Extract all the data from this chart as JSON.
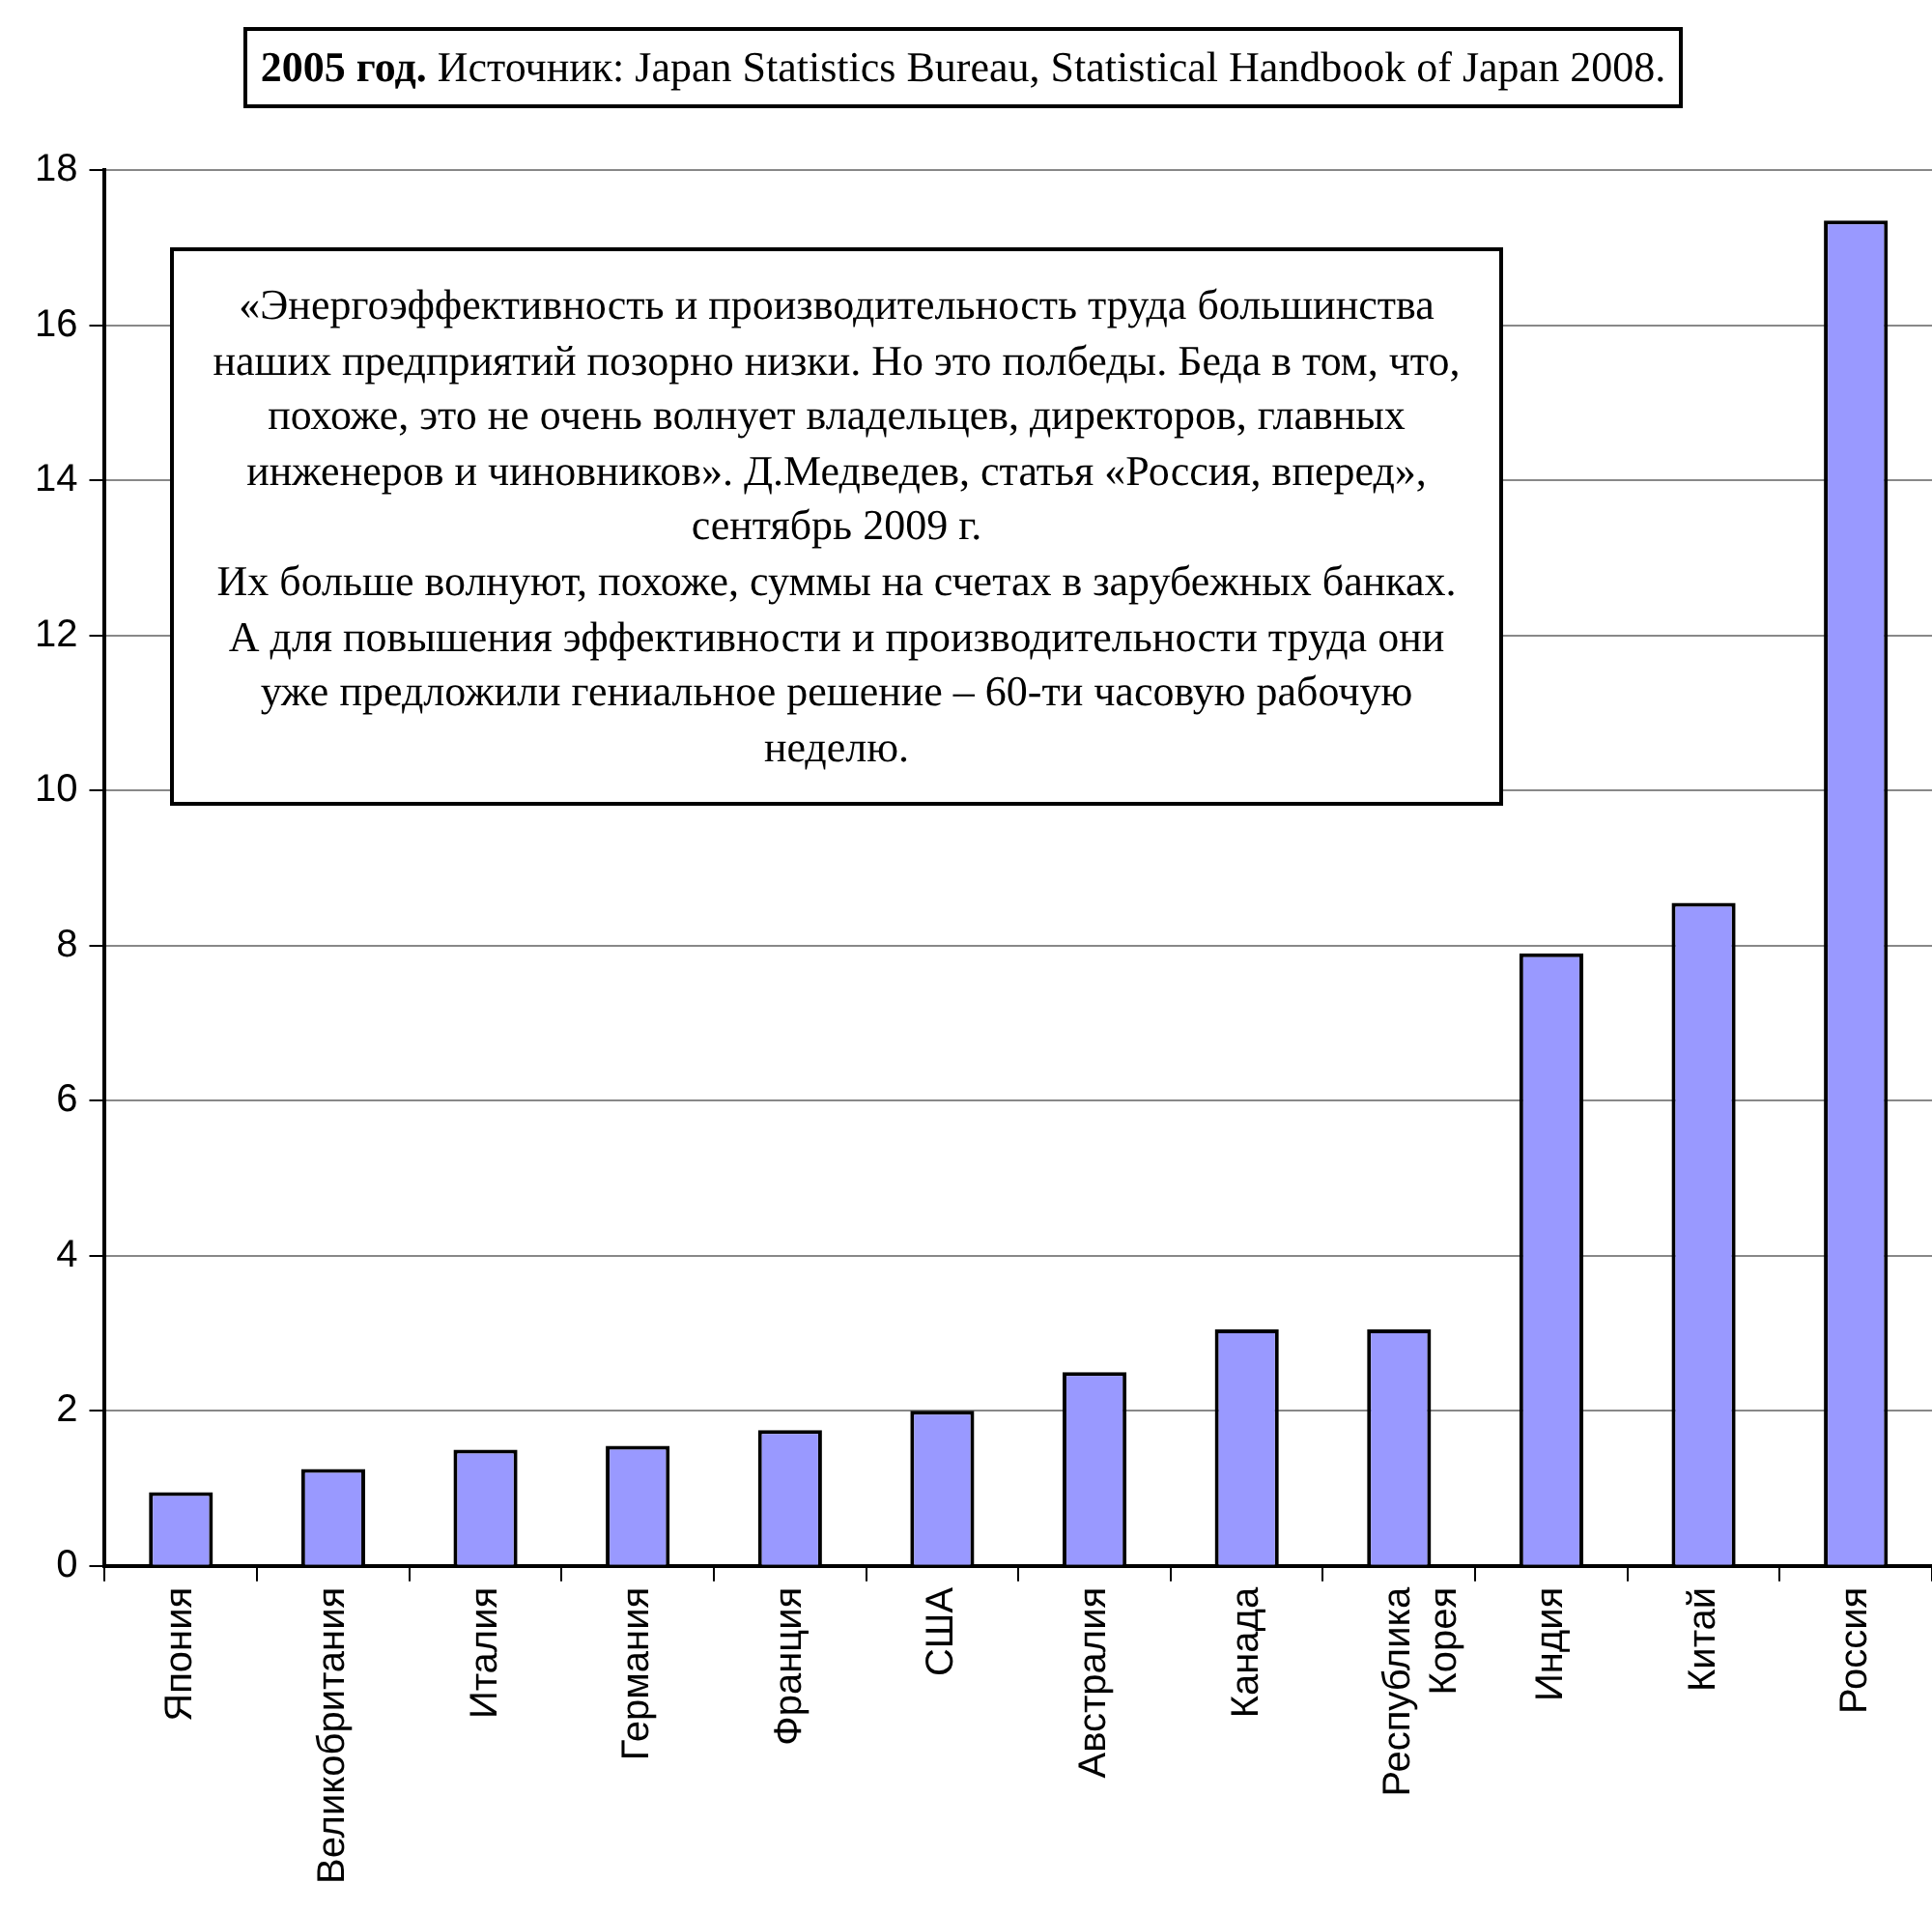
{
  "chart_data": {
    "type": "bar",
    "title": "2005 год.",
    "subtitle": "Источник: Japan Statistics Bureau, Statistical Handbook of Japan 2008.",
    "categories": [
      "Япония",
      "Великобритания",
      "Италия",
      "Германия",
      "Франция",
      "США",
      "Австралия",
      "Канада",
      "Республика Корея",
      "Индия",
      "Китай",
      "Россия"
    ],
    "values": [
      0.95,
      1.25,
      1.5,
      1.55,
      1.75,
      2.0,
      2.5,
      3.05,
      3.05,
      7.9,
      8.55,
      17.35
    ],
    "color": "#9999ff",
    "ylim": [
      0,
      18
    ],
    "yticks": [
      0,
      2,
      4,
      6,
      8,
      10,
      12,
      14,
      16,
      18
    ],
    "grid": "y",
    "legend": false,
    "annotations": [
      "«Энергоэффективность и производительность труда большинства наших предприятий позорно низки. Но это полбеды. Беда в том, что, похоже, это не очень волнует владельцев, директоров, главных инженеров и чиновников».  Д.Медведев, статья «Россия, вперед», сентябрь 2009 г.",
      "Их больше волнуют, похоже, суммы на счетах в зарубежных банках. А для повышения эффективности и производительности труда они уже предложили гениальное решение – 60-ти часовую рабочую неделю."
    ]
  }
}
